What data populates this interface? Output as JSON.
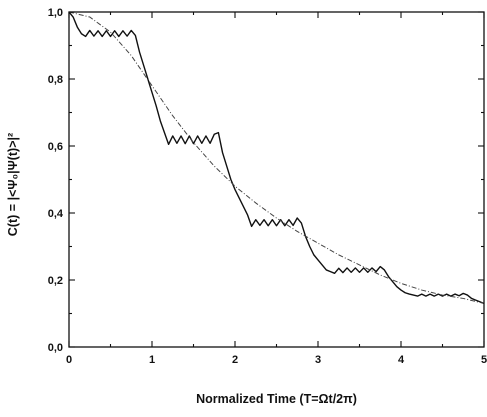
{
  "chart_data": {
    "type": "line",
    "title": "",
    "xlabel": "Normalized Time (T=Ωt/2π)",
    "ylabel": "C(t) = |<Ψ₀|Ψ(t)>|²",
    "xlim": [
      0,
      5
    ],
    "ylim": [
      0,
      1.0
    ],
    "x_ticks": [
      0,
      1,
      2,
      3,
      4,
      5
    ],
    "x_tick_labels": [
      "0",
      "1",
      "2",
      "3",
      "4",
      "5"
    ],
    "y_ticks": [
      0,
      0.2,
      0.4,
      0.6,
      0.8,
      1.0
    ],
    "y_tick_labels": [
      "0,0",
      "0,2",
      "0,4",
      "0,6",
      "0,8",
      "1,0"
    ],
    "grid": false,
    "legend": "none",
    "colors": {
      "axis": "#111111",
      "solid_series": "#111111",
      "dashdot_series": "#444444"
    },
    "series": [
      {
        "style": "solid",
        "x": [
          0,
          0.05,
          0.1,
          0.15,
          0.2,
          0.25,
          0.3,
          0.35,
          0.4,
          0.45,
          0.5,
          0.55,
          0.6,
          0.65,
          0.7,
          0.75,
          0.8,
          0.85,
          0.9,
          0.95,
          1.0,
          1.05,
          1.1,
          1.15,
          1.2,
          1.25,
          1.3,
          1.35,
          1.4,
          1.45,
          1.5,
          1.55,
          1.6,
          1.65,
          1.7,
          1.75,
          1.8,
          1.85,
          1.9,
          1.95,
          2.0,
          2.05,
          2.1,
          2.15,
          2.2,
          2.25,
          2.3,
          2.35,
          2.4,
          2.45,
          2.5,
          2.55,
          2.6,
          2.65,
          2.7,
          2.75,
          2.8,
          2.85,
          2.9,
          2.95,
          3.0,
          3.05,
          3.1,
          3.15,
          3.2,
          3.25,
          3.3,
          3.35,
          3.4,
          3.45,
          3.5,
          3.55,
          3.6,
          3.65,
          3.7,
          3.75,
          3.8,
          3.85,
          3.9,
          3.95,
          4.0,
          4.05,
          4.1,
          4.15,
          4.2,
          4.25,
          4.3,
          4.35,
          4.4,
          4.45,
          4.5,
          4.55,
          4.6,
          4.65,
          4.7,
          4.75,
          4.8,
          4.85,
          4.9,
          4.95,
          5.0
        ],
        "y": [
          1.0,
          0.985,
          0.955,
          0.935,
          0.927,
          0.945,
          0.928,
          0.944,
          0.927,
          0.944,
          0.927,
          0.944,
          0.927,
          0.944,
          0.928,
          0.945,
          0.93,
          0.88,
          0.84,
          0.8,
          0.76,
          0.72,
          0.675,
          0.64,
          0.605,
          0.63,
          0.608,
          0.63,
          0.607,
          0.63,
          0.607,
          0.63,
          0.608,
          0.63,
          0.608,
          0.635,
          0.64,
          0.58,
          0.54,
          0.5,
          0.47,
          0.445,
          0.42,
          0.395,
          0.36,
          0.38,
          0.363,
          0.38,
          0.362,
          0.38,
          0.362,
          0.38,
          0.362,
          0.38,
          0.363,
          0.385,
          0.37,
          0.33,
          0.3,
          0.275,
          0.26,
          0.245,
          0.23,
          0.225,
          0.22,
          0.235,
          0.222,
          0.236,
          0.223,
          0.236,
          0.223,
          0.236,
          0.223,
          0.236,
          0.225,
          0.24,
          0.23,
          0.21,
          0.195,
          0.18,
          0.17,
          0.162,
          0.158,
          0.155,
          0.152,
          0.158,
          0.152,
          0.158,
          0.152,
          0.158,
          0.152,
          0.158,
          0.152,
          0.158,
          0.153,
          0.16,
          0.155,
          0.145,
          0.14,
          0.135,
          0.13
        ]
      },
      {
        "style": "dash-dot",
        "x": [
          0,
          0.25,
          0.5,
          0.75,
          1.0,
          1.25,
          1.5,
          1.75,
          2.0,
          2.25,
          2.5,
          2.75,
          3.0,
          3.25,
          3.5,
          3.75,
          4.0,
          4.25,
          4.5,
          4.75,
          5.0
        ],
        "y": [
          1.0,
          0.985,
          0.94,
          0.87,
          0.78,
          0.69,
          0.61,
          0.54,
          0.48,
          0.43,
          0.385,
          0.345,
          0.31,
          0.275,
          0.245,
          0.215,
          0.19,
          0.17,
          0.155,
          0.145,
          0.13
        ]
      }
    ]
  }
}
